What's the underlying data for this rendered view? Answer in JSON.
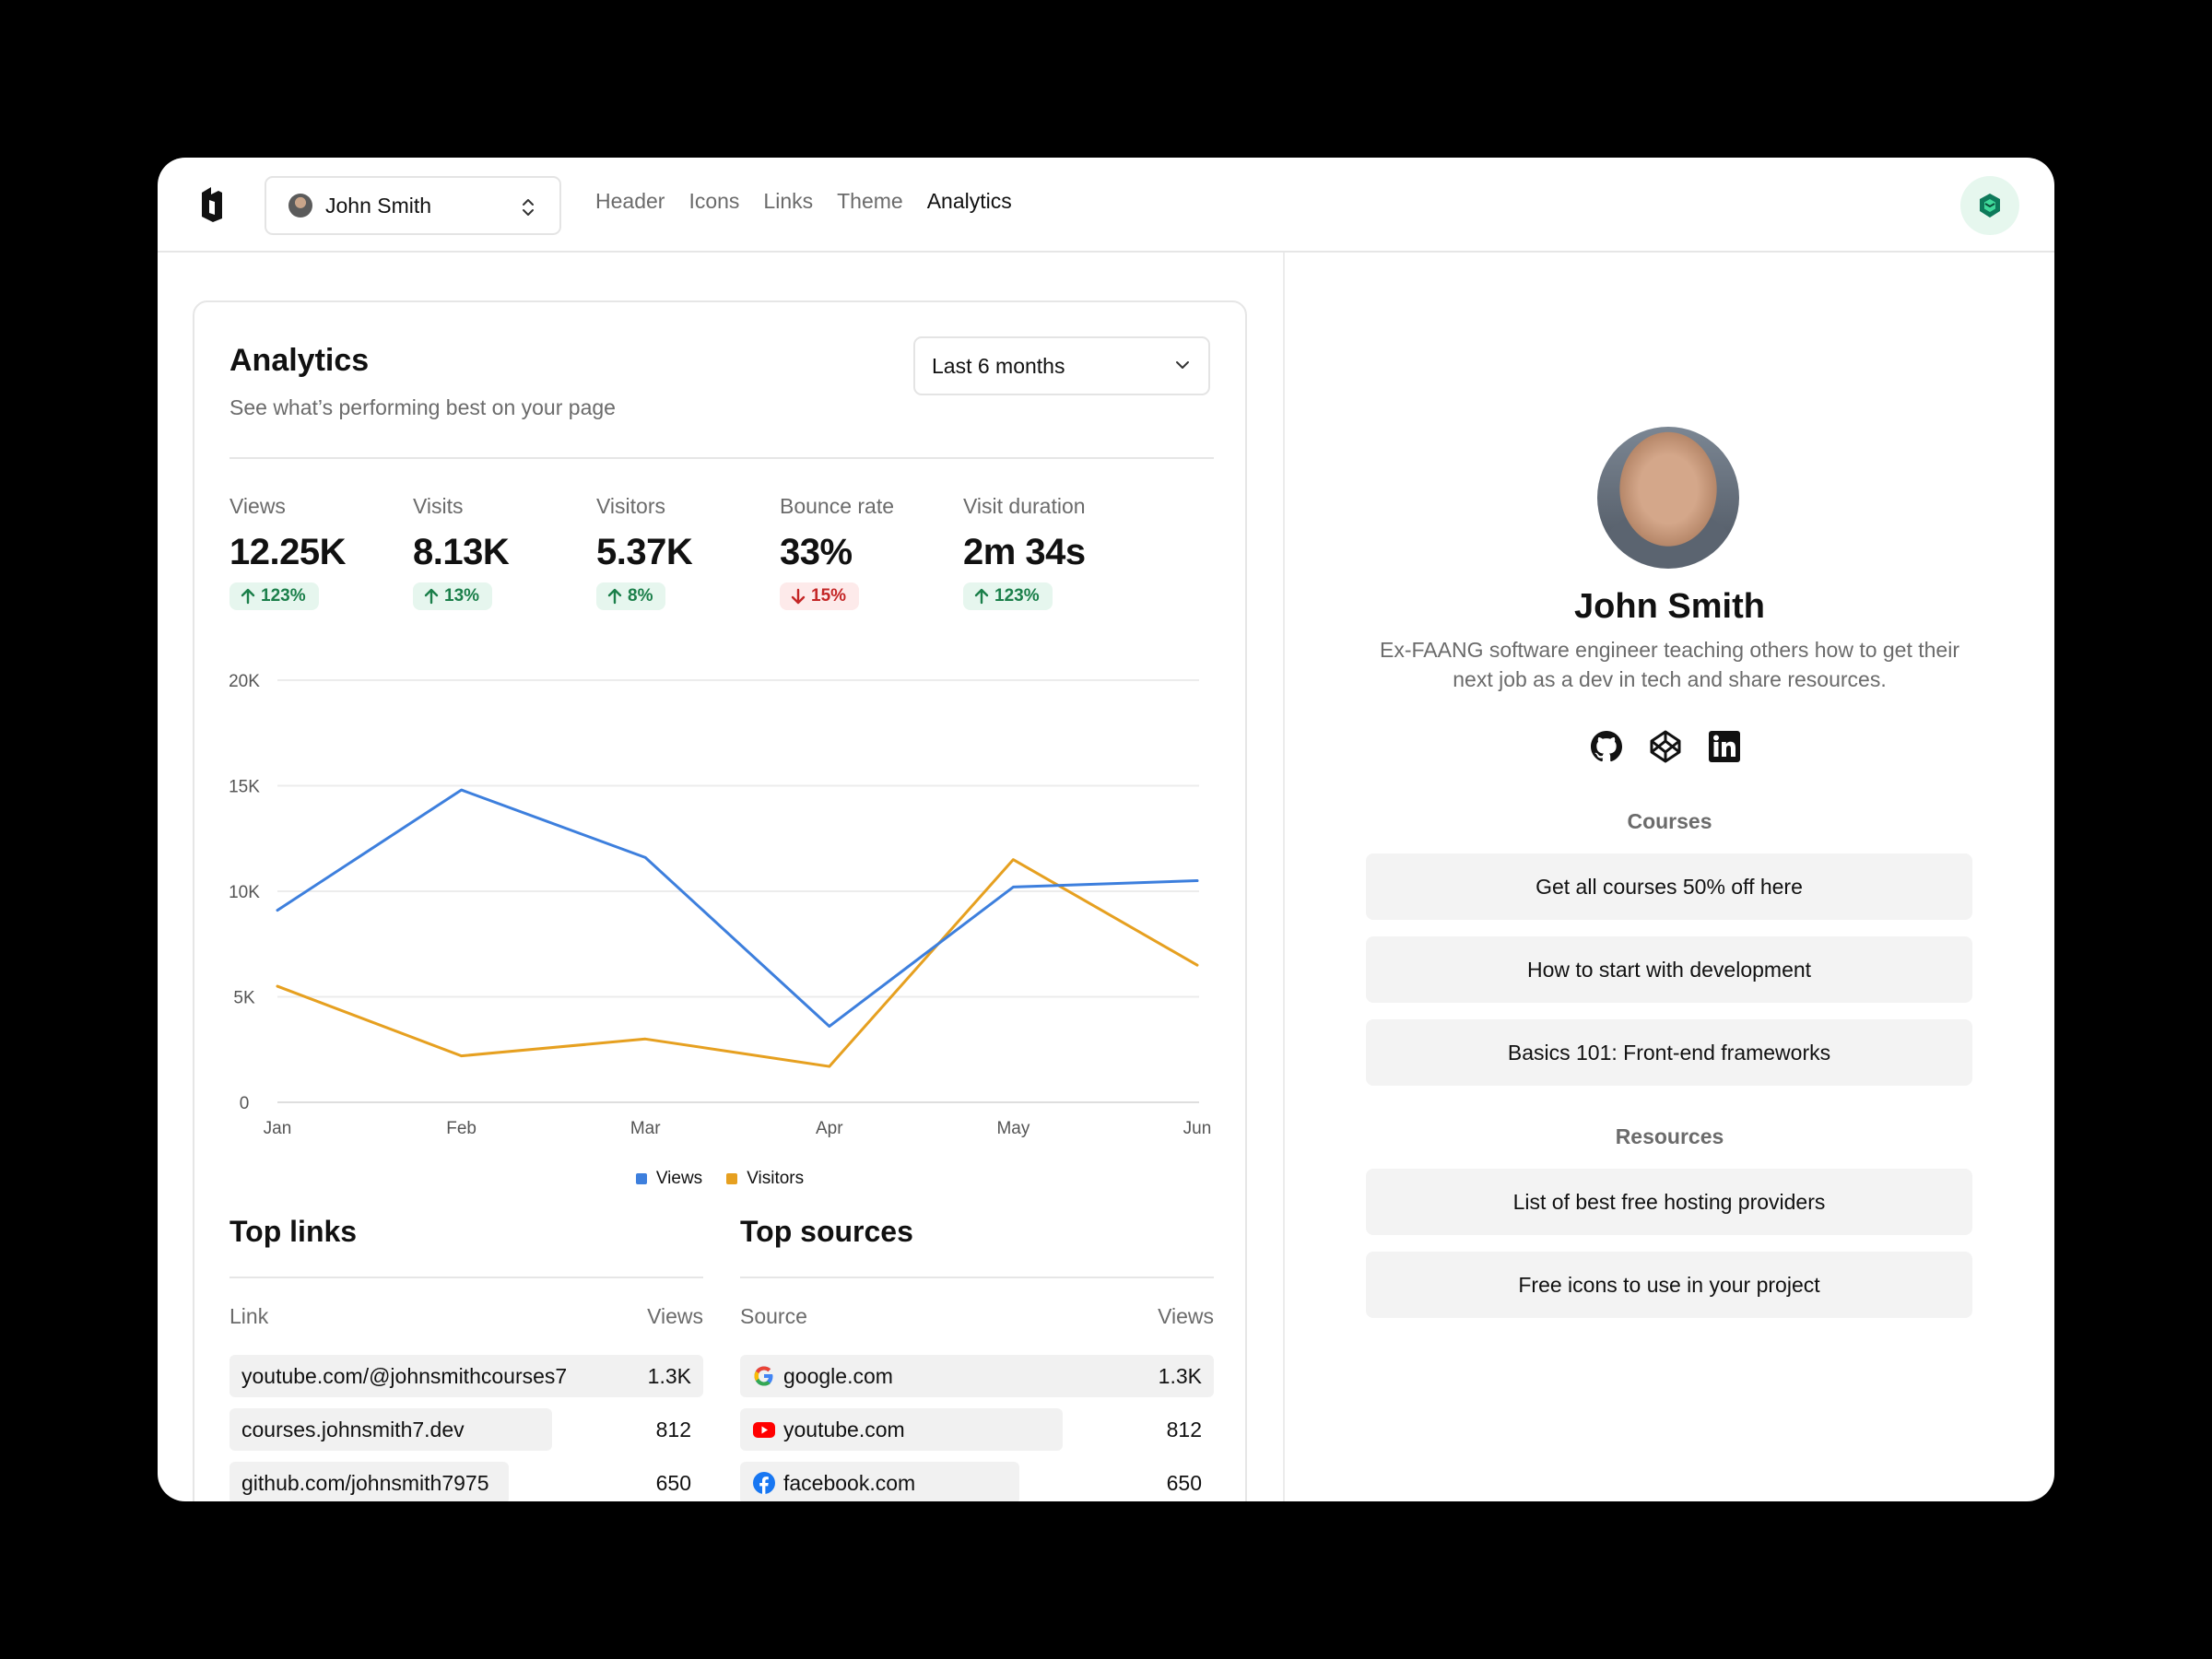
{
  "header": {
    "profile_name": "John Smith",
    "nav_tabs": [
      {
        "label": "Header",
        "active": false
      },
      {
        "label": "Icons",
        "active": false
      },
      {
        "label": "Links",
        "active": false
      },
      {
        "label": "Theme",
        "active": false
      },
      {
        "label": "Analytics",
        "active": true
      }
    ]
  },
  "analytics": {
    "title": "Analytics",
    "subtitle": "See what’s performing best on your page",
    "range": "Last 6 months",
    "stats": [
      {
        "label": "Views",
        "value": "12.25K",
        "change": "123%",
        "direction": "up"
      },
      {
        "label": "Visits",
        "value": "8.13K",
        "change": "13%",
        "direction": "up"
      },
      {
        "label": "Visitors",
        "value": "5.37K",
        "change": "8%",
        "direction": "up"
      },
      {
        "label": "Bounce rate",
        "value": "33%",
        "change": "15%",
        "direction": "down"
      },
      {
        "label": "Visit duration",
        "value": "2m 34s",
        "change": "123%",
        "direction": "up"
      }
    ]
  },
  "chart_data": {
    "type": "line",
    "x": [
      "Jan",
      "Feb",
      "Mar",
      "Apr",
      "May",
      "Jun"
    ],
    "y_ticks": [
      "0",
      "5K",
      "10K",
      "15K",
      "20K"
    ],
    "ylim": [
      0,
      20000
    ],
    "grid": true,
    "legend_position": "bottom",
    "series": [
      {
        "name": "Views",
        "color": "#3d7fdd",
        "values": [
          9100,
          14800,
          11600,
          3600,
          10200,
          10500
        ]
      },
      {
        "name": "Visitors",
        "color": "#e6a020",
        "values": [
          5500,
          2200,
          3000,
          1700,
          11500,
          6500
        ]
      }
    ]
  },
  "top_links": {
    "title": "Top links",
    "col_label": "Link",
    "col_value": "Views",
    "rows": [
      {
        "label": "youtube.com/@johnsmithcourses7",
        "value": "1.3K",
        "share": 1.0
      },
      {
        "label": "courses.johnsmith7.dev",
        "value": "812",
        "share": 0.68
      },
      {
        "label": "github.com/johnsmith7975",
        "value": "650",
        "share": 0.59
      }
    ]
  },
  "top_sources": {
    "title": "Top sources",
    "col_label": "Source",
    "col_value": "Views",
    "rows": [
      {
        "label": "google.com",
        "value": "1.3K",
        "share": 1.0,
        "icon": "google-icon"
      },
      {
        "label": "youtube.com",
        "value": "812",
        "share": 0.68,
        "icon": "youtube-icon"
      },
      {
        "label": "facebook.com",
        "value": "650",
        "share": 0.59,
        "icon": "facebook-icon"
      }
    ]
  },
  "preview": {
    "name": "John Smith",
    "bio": "Ex-FAANG software engineer teaching others how to get their next job as a dev in tech and share resources.",
    "social_icons": [
      "github-icon",
      "codepen-icon",
      "linkedin-icon"
    ],
    "sections": [
      {
        "label": "Courses",
        "links": [
          "Get all courses 50% off here",
          "How to start with development",
          "Basics 101: Front-end frameworks"
        ]
      },
      {
        "label": "Resources",
        "links": [
          "List of best free hosting providers",
          "Free icons to use in your project"
        ]
      }
    ]
  },
  "colors": {
    "views": "#3d7fdd",
    "visitors": "#e6a020",
    "up": "#1b7f4a",
    "down": "#c42626"
  }
}
